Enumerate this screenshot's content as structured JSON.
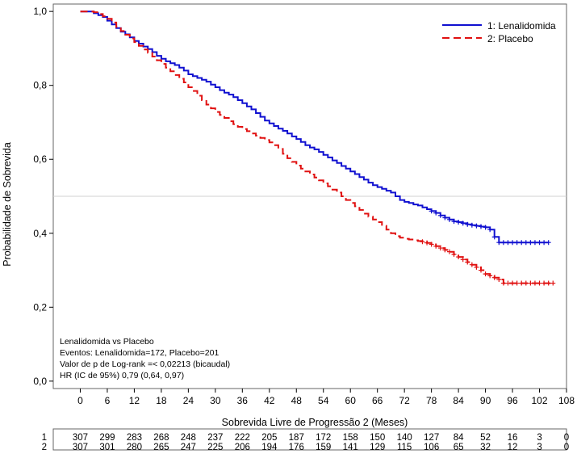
{
  "chart_data": {
    "type": "line",
    "style": "kaplan-meier step curves with censor marks",
    "xlabel": "Sobrevida Livre de Progressão 2 (Meses)",
    "ylabel": "Probabilidade de Sobrevida",
    "xlim": [
      -6,
      108
    ],
    "ylim": [
      -0.02,
      1.02
    ],
    "xticks": [
      0,
      6,
      12,
      18,
      24,
      30,
      36,
      42,
      48,
      54,
      60,
      66,
      72,
      78,
      84,
      90,
      96,
      102,
      108
    ],
    "yticks": [
      0.0,
      0.2,
      0.4,
      0.6,
      0.8,
      1.0
    ],
    "ytick_labels": [
      "0,0",
      "0,2",
      "0,4",
      "0,6",
      "0,8",
      "1,0"
    ],
    "reference_line_y": 0.5,
    "grid": false,
    "legend_position": "top-right",
    "series": [
      {
        "name": "1: Lenalidomida",
        "color": "#1010d0",
        "dash": "solid",
        "points": [
          [
            0,
            1.0
          ],
          [
            2,
            1.0
          ],
          [
            3,
            0.995
          ],
          [
            4,
            0.99
          ],
          [
            5,
            0.985
          ],
          [
            6,
            0.975
          ],
          [
            7,
            0.965
          ],
          [
            8,
            0.955
          ],
          [
            9,
            0.945
          ],
          [
            10,
            0.938
          ],
          [
            11,
            0.93
          ],
          [
            12,
            0.92
          ],
          [
            13,
            0.913
          ],
          [
            14,
            0.905
          ],
          [
            15,
            0.898
          ],
          [
            16,
            0.89
          ],
          [
            17,
            0.88
          ],
          [
            18,
            0.872
          ],
          [
            19,
            0.865
          ],
          [
            20,
            0.86
          ],
          [
            21,
            0.855
          ],
          [
            22,
            0.848
          ],
          [
            23,
            0.84
          ],
          [
            24,
            0.83
          ],
          [
            25,
            0.825
          ],
          [
            26,
            0.82
          ],
          [
            27,
            0.815
          ],
          [
            28,
            0.81
          ],
          [
            29,
            0.802
          ],
          [
            30,
            0.795
          ],
          [
            31,
            0.787
          ],
          [
            32,
            0.78
          ],
          [
            33,
            0.775
          ],
          [
            34,
            0.768
          ],
          [
            35,
            0.76
          ],
          [
            36,
            0.752
          ],
          [
            37,
            0.743
          ],
          [
            38,
            0.735
          ],
          [
            39,
            0.725
          ],
          [
            40,
            0.715
          ],
          [
            41,
            0.705
          ],
          [
            42,
            0.697
          ],
          [
            43,
            0.69
          ],
          [
            44,
            0.683
          ],
          [
            45,
            0.677
          ],
          [
            46,
            0.67
          ],
          [
            47,
            0.662
          ],
          [
            48,
            0.655
          ],
          [
            49,
            0.647
          ],
          [
            50,
            0.638
          ],
          [
            51,
            0.632
          ],
          [
            52,
            0.627
          ],
          [
            53,
            0.62
          ],
          [
            54,
            0.612
          ],
          [
            55,
            0.605
          ],
          [
            56,
            0.597
          ],
          [
            57,
            0.59
          ],
          [
            58,
            0.582
          ],
          [
            59,
            0.575
          ],
          [
            60,
            0.567
          ],
          [
            61,
            0.56
          ],
          [
            62,
            0.552
          ],
          [
            63,
            0.545
          ],
          [
            64,
            0.537
          ],
          [
            65,
            0.53
          ],
          [
            66,
            0.525
          ],
          [
            67,
            0.52
          ],
          [
            68,
            0.515
          ],
          [
            69,
            0.51
          ],
          [
            70,
            0.5
          ],
          [
            71,
            0.49
          ],
          [
            72,
            0.485
          ],
          [
            73,
            0.482
          ],
          [
            74,
            0.478
          ],
          [
            75,
            0.475
          ],
          [
            76,
            0.47
          ],
          [
            77,
            0.465
          ],
          [
            78,
            0.46
          ],
          [
            79,
            0.455
          ],
          [
            80,
            0.448
          ],
          [
            81,
            0.442
          ],
          [
            82,
            0.437
          ],
          [
            83,
            0.432
          ],
          [
            84,
            0.43
          ],
          [
            85,
            0.427
          ],
          [
            86,
            0.424
          ],
          [
            87,
            0.422
          ],
          [
            88,
            0.42
          ],
          [
            89,
            0.418
          ],
          [
            90,
            0.416
          ],
          [
            91,
            0.41
          ],
          [
            92,
            0.39
          ],
          [
            93,
            0.375
          ],
          [
            94,
            0.375
          ],
          [
            96,
            0.375
          ],
          [
            104,
            0.375
          ]
        ],
        "censor_x": [
          78,
          79,
          80,
          81,
          82,
          83,
          84,
          85,
          86,
          87,
          88,
          89,
          90,
          91,
          92,
          93,
          94,
          95,
          96,
          97,
          98,
          99,
          100,
          101,
          102,
          103,
          104
        ]
      },
      {
        "name": "2: Placebo",
        "color": "#e01010",
        "dash": "dashed",
        "points": [
          [
            0,
            1.0
          ],
          [
            2,
            1.0
          ],
          [
            3,
            0.998
          ],
          [
            4,
            0.993
          ],
          [
            5,
            0.987
          ],
          [
            6,
            0.98
          ],
          [
            7,
            0.97
          ],
          [
            8,
            0.958
          ],
          [
            9,
            0.947
          ],
          [
            10,
            0.937
          ],
          [
            11,
            0.927
          ],
          [
            12,
            0.917
          ],
          [
            13,
            0.907
          ],
          [
            14,
            0.897
          ],
          [
            15,
            0.888
          ],
          [
            16,
            0.878
          ],
          [
            17,
            0.868
          ],
          [
            18,
            0.858
          ],
          [
            19,
            0.848
          ],
          [
            20,
            0.838
          ],
          [
            21,
            0.828
          ],
          [
            22,
            0.818
          ],
          [
            23,
            0.808
          ],
          [
            24,
            0.795
          ],
          [
            25,
            0.785
          ],
          [
            26,
            0.772
          ],
          [
            27,
            0.76
          ],
          [
            28,
            0.748
          ],
          [
            29,
            0.738
          ],
          [
            30,
            0.728
          ],
          [
            31,
            0.72
          ],
          [
            32,
            0.712
          ],
          [
            33,
            0.703
          ],
          [
            34,
            0.695
          ],
          [
            35,
            0.688
          ],
          [
            36,
            0.682
          ],
          [
            37,
            0.676
          ],
          [
            38,
            0.67
          ],
          [
            39,
            0.664
          ],
          [
            40,
            0.658
          ],
          [
            41,
            0.652
          ],
          [
            42,
            0.646
          ],
          [
            43,
            0.638
          ],
          [
            44,
            0.628
          ],
          [
            45,
            0.615
          ],
          [
            46,
            0.603
          ],
          [
            47,
            0.593
          ],
          [
            48,
            0.583
          ],
          [
            49,
            0.575
          ],
          [
            50,
            0.567
          ],
          [
            51,
            0.559
          ],
          [
            52,
            0.551
          ],
          [
            53,
            0.543
          ],
          [
            54,
            0.535
          ],
          [
            55,
            0.527
          ],
          [
            56,
            0.518
          ],
          [
            57,
            0.51
          ],
          [
            58,
            0.5
          ],
          [
            59,
            0.49
          ],
          [
            60,
            0.482
          ],
          [
            61,
            0.473
          ],
          [
            62,
            0.463
          ],
          [
            63,
            0.453
          ],
          [
            64,
            0.445
          ],
          [
            65,
            0.437
          ],
          [
            66,
            0.43
          ],
          [
            67,
            0.42
          ],
          [
            68,
            0.41
          ],
          [
            69,
            0.4
          ],
          [
            70,
            0.392
          ],
          [
            71,
            0.388
          ],
          [
            72,
            0.385
          ],
          [
            73,
            0.383
          ],
          [
            74,
            0.381
          ],
          [
            75,
            0.379
          ],
          [
            76,
            0.377
          ],
          [
            77,
            0.374
          ],
          [
            78,
            0.37
          ],
          [
            79,
            0.365
          ],
          [
            80,
            0.36
          ],
          [
            81,
            0.355
          ],
          [
            82,
            0.35
          ],
          [
            83,
            0.343
          ],
          [
            84,
            0.336
          ],
          [
            85,
            0.329
          ],
          [
            86,
            0.322
          ],
          [
            87,
            0.315
          ],
          [
            88,
            0.308
          ],
          [
            89,
            0.3
          ],
          [
            90,
            0.29
          ],
          [
            91,
            0.285
          ],
          [
            92,
            0.28
          ],
          [
            93,
            0.275
          ],
          [
            94,
            0.265
          ],
          [
            96,
            0.265
          ],
          [
            105,
            0.265
          ]
        ],
        "censor_x": [
          76,
          77,
          78,
          79,
          80,
          81,
          82,
          83,
          84,
          85,
          86,
          87,
          88,
          89,
          90,
          91,
          92,
          93,
          94,
          95,
          96,
          97,
          98,
          99,
          100,
          101,
          102,
          103,
          104,
          105
        ]
      }
    ],
    "annotations": [
      "Lenalidomida vs Placebo",
      "Eventos: Lenalidomida=172, Placebo=201",
      "Valor de p de Log-rank =< 0,02213 (bicaudal)",
      "HR (IC de 95%) 0,79 (0,64, 0,97)"
    ],
    "risk_table": {
      "times": [
        0,
        6,
        12,
        18,
        24,
        30,
        36,
        42,
        48,
        54,
        60,
        66,
        72,
        78,
        84,
        90,
        96,
        102,
        108
      ],
      "rows": [
        {
          "label": "1",
          "values": [
            307,
            299,
            283,
            268,
            248,
            237,
            222,
            205,
            187,
            172,
            158,
            150,
            140,
            127,
            84,
            52,
            16,
            3,
            0
          ]
        },
        {
          "label": "2",
          "values": [
            307,
            301,
            280,
            265,
            247,
            225,
            206,
            194,
            176,
            159,
            141,
            129,
            115,
            106,
            65,
            32,
            12,
            3,
            0
          ]
        }
      ]
    }
  }
}
